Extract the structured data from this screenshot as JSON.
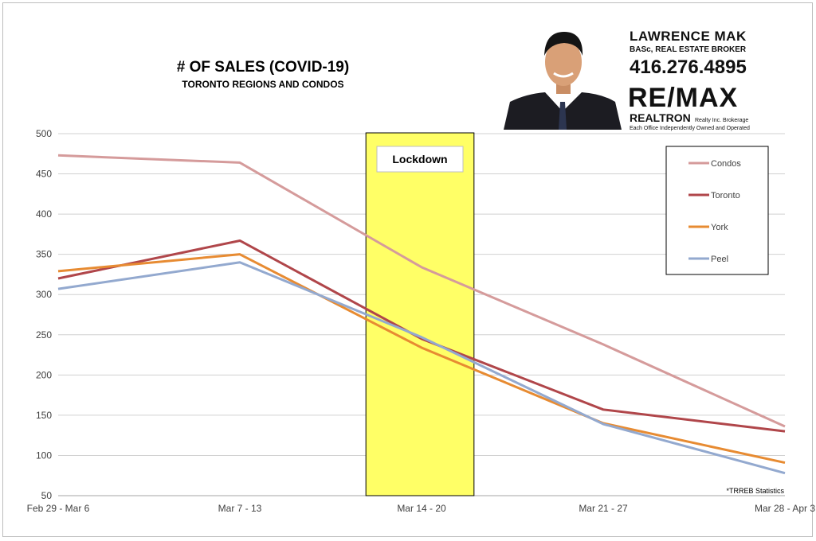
{
  "chart_data": {
    "type": "line",
    "title": "# OF SALES (COVID-19)",
    "subtitle": "TORONTO REGIONS AND CONDOS",
    "categories": [
      "Feb 29 - Mar 6",
      "Mar 7 - 13",
      "Mar 14 - 20",
      "Mar 21 - 27",
      "Mar 28 - Apr 3"
    ],
    "ylim": [
      50,
      500
    ],
    "yticks": [
      50,
      100,
      150,
      200,
      250,
      300,
      350,
      400,
      450,
      500
    ],
    "grid": true,
    "legend_position": "top-right",
    "series": [
      {
        "name": "Condos",
        "color": "#d59b9b",
        "values": [
          473,
          464,
          334,
          238,
          136
        ]
      },
      {
        "name": "Toronto",
        "color": "#b0464a",
        "values": [
          320,
          367,
          245,
          157,
          130
        ]
      },
      {
        "name": "York",
        "color": "#e78b32",
        "values": [
          329,
          350,
          234,
          140,
          91
        ]
      },
      {
        "name": "Peel",
        "color": "#93a9cf",
        "values": [
          307,
          340,
          247,
          139,
          78
        ]
      }
    ],
    "annotations": [
      {
        "type": "band",
        "label": "Lockdown",
        "category": "Mar 14 - 20",
        "color": "#ffff66"
      }
    ],
    "note": "*TRREB Statistics"
  },
  "branding": {
    "name": "LAWRENCE MAK",
    "title": "BASc, REAL ESTATE BROKER",
    "phone": "416.276.4895",
    "logo": "RE/MAX",
    "office": "REALTRON",
    "office_suffix": "Realty Inc. Brokerage",
    "office_note": "Each Office Independently Owned and Operated",
    "photo_icon": "agent-portrait-icon"
  }
}
